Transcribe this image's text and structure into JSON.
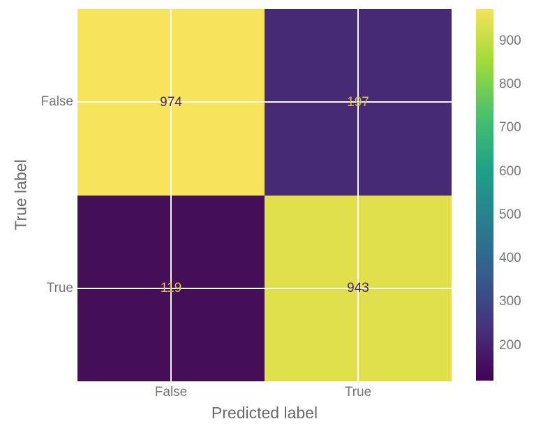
{
  "chart_data": {
    "type": "heatmap",
    "subtype": "confusion_matrix",
    "title": "",
    "xlabel": "Predicted label",
    "ylabel": "True label",
    "x_tick_labels": [
      "False",
      "True"
    ],
    "y_tick_labels": [
      "False",
      "True"
    ],
    "matrix": [
      [
        974,
        197
      ],
      [
        119,
        943
      ]
    ],
    "vmin": 119,
    "vmax": 974,
    "colormap": "viridis",
    "grid": true,
    "legend": "none",
    "colorbar": {
      "position": "right",
      "ticks": [
        900,
        800,
        700,
        600,
        500,
        400,
        300,
        200
      ]
    }
  },
  "colors": {
    "background": "#ffffff",
    "gridline": "#ffffff",
    "tick_label": "#767676",
    "axis_label": "#6b6b6b",
    "cell_fill": [
      [
        "#f8e45a",
        "#472a76"
      ],
      [
        "#440f56",
        "#e2df4c"
      ]
    ],
    "cell_text": [
      [
        "#452766",
        "#ddc33e"
      ],
      [
        "#ddc33e",
        "#452766"
      ]
    ],
    "viridis_stops": [
      "#440154",
      "#46327e",
      "#365c8d",
      "#277f8e",
      "#1fa187",
      "#4ac16d",
      "#a0da39",
      "#f5e35a"
    ]
  }
}
